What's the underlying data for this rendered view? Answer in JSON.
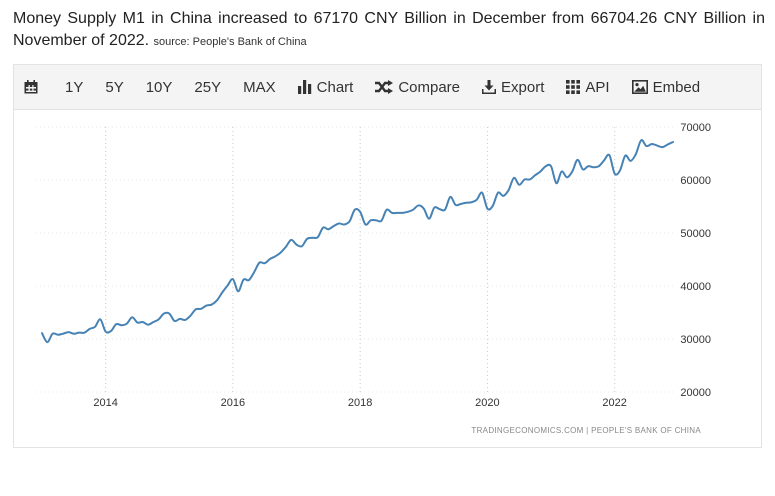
{
  "headline": {
    "text": "Money Supply M1 in China increased to 67170 CNY Billion in December from 66704.26 CNY Billion in November of 2022.",
    "source": "source: People's Bank of China"
  },
  "toolbar": {
    "items": [
      {
        "label": "",
        "icon": "calendar-icon"
      },
      {
        "label": "1Y"
      },
      {
        "label": "5Y"
      },
      {
        "label": "10Y"
      },
      {
        "label": "25Y"
      },
      {
        "label": "MAX"
      },
      {
        "label": "Chart",
        "icon": "bar-chart-icon"
      },
      {
        "label": "Compare",
        "icon": "shuffle-icon"
      },
      {
        "label": "Export",
        "icon": "download-icon"
      },
      {
        "label": "API",
        "icon": "grid-icon"
      },
      {
        "label": "Embed",
        "icon": "image-icon"
      }
    ]
  },
  "credit": "TRADINGECONOMICS.COM  |  PEOPLE'S BANK OF CHINA",
  "chart_data": {
    "type": "line",
    "title": "",
    "xlabel": "",
    "ylabel": "",
    "ylim": [
      20000,
      70000
    ],
    "yticks": [
      "20000",
      "30000",
      "40000",
      "50000",
      "60000",
      "70000"
    ],
    "xticks": [
      "2014",
      "2016",
      "2018",
      "2020",
      "2022"
    ],
    "grid": "vertical",
    "line_color": "#4682b4",
    "series": [
      {
        "x": [
          "2013-01",
          "2013-02",
          "2013-03",
          "2013-04",
          "2013-05",
          "2013-06",
          "2013-07",
          "2013-08",
          "2013-09",
          "2013-10",
          "2013-11",
          "2013-12",
          "2014-01",
          "2014-02",
          "2014-03",
          "2014-04",
          "2014-05",
          "2014-06",
          "2014-07",
          "2014-08",
          "2014-09",
          "2014-10",
          "2014-11",
          "2014-12",
          "2015-01",
          "2015-02",
          "2015-03",
          "2015-04",
          "2015-05",
          "2015-06",
          "2015-07",
          "2015-08",
          "2015-09",
          "2015-10",
          "2015-11",
          "2015-12",
          "2016-01",
          "2016-02",
          "2016-03",
          "2016-04",
          "2016-05",
          "2016-06",
          "2016-07",
          "2016-08",
          "2016-09",
          "2016-10",
          "2016-11",
          "2016-12",
          "2017-01",
          "2017-02",
          "2017-03",
          "2017-04",
          "2017-05",
          "2017-06",
          "2017-07",
          "2017-08",
          "2017-09",
          "2017-10",
          "2017-11",
          "2017-12",
          "2018-01",
          "2018-02",
          "2018-03",
          "2018-04",
          "2018-05",
          "2018-06",
          "2018-07",
          "2018-08",
          "2018-09",
          "2018-10",
          "2018-11",
          "2018-12",
          "2019-01",
          "2019-02",
          "2019-03",
          "2019-04",
          "2019-05",
          "2019-06",
          "2019-07",
          "2019-08",
          "2019-09",
          "2019-10",
          "2019-11",
          "2019-12",
          "2020-01",
          "2020-02",
          "2020-03",
          "2020-04",
          "2020-05",
          "2020-06",
          "2020-07",
          "2020-08",
          "2020-09",
          "2020-10",
          "2020-11",
          "2020-12",
          "2021-01",
          "2021-02",
          "2021-03",
          "2021-04",
          "2021-05",
          "2021-06",
          "2021-07",
          "2021-08",
          "2021-09",
          "2021-10",
          "2021-11",
          "2021-12",
          "2022-01",
          "2022-02",
          "2022-03",
          "2022-04",
          "2022-05",
          "2022-06",
          "2022-07",
          "2022-08",
          "2022-09",
          "2022-10",
          "2022-11",
          "2022-12"
        ],
        "values": [
          31100,
          29400,
          31000,
          30800,
          31000,
          31300,
          31000,
          31200,
          31200,
          31900,
          32300,
          33700,
          31400,
          31500,
          32800,
          32600,
          32900,
          34100,
          33100,
          33200,
          32700,
          33200,
          33700,
          34800,
          34800,
          33400,
          33800,
          33600,
          34400,
          35600,
          35700,
          36300,
          36500,
          37300,
          38800,
          40100,
          41300,
          39000,
          41200,
          41100,
          42600,
          44400,
          44300,
          45100,
          45600,
          46300,
          47400,
          48700,
          47800,
          47500,
          48900,
          49100,
          49200,
          51000,
          50700,
          51300,
          51800,
          51600,
          52200,
          54400,
          54000,
          51600,
          52400,
          52400,
          52300,
          54400,
          53800,
          53800,
          53800,
          54000,
          54400,
          55200,
          54600,
          52700,
          54800,
          54500,
          54400,
          56800,
          55300,
          55500,
          55700,
          55800,
          56300,
          57600,
          54600,
          55100,
          57600,
          57000,
          58100,
          60400,
          59100,
          60100,
          60100,
          60900,
          61600,
          62600,
          62600,
          59400,
          61600,
          60500,
          61600,
          63800,
          62000,
          62600,
          62400,
          62600,
          63700,
          64700,
          61200,
          61800,
          64600,
          63600,
          64900,
          67500,
          66400,
          66800,
          66500,
          66200,
          66700,
          67170
        ]
      }
    ]
  }
}
